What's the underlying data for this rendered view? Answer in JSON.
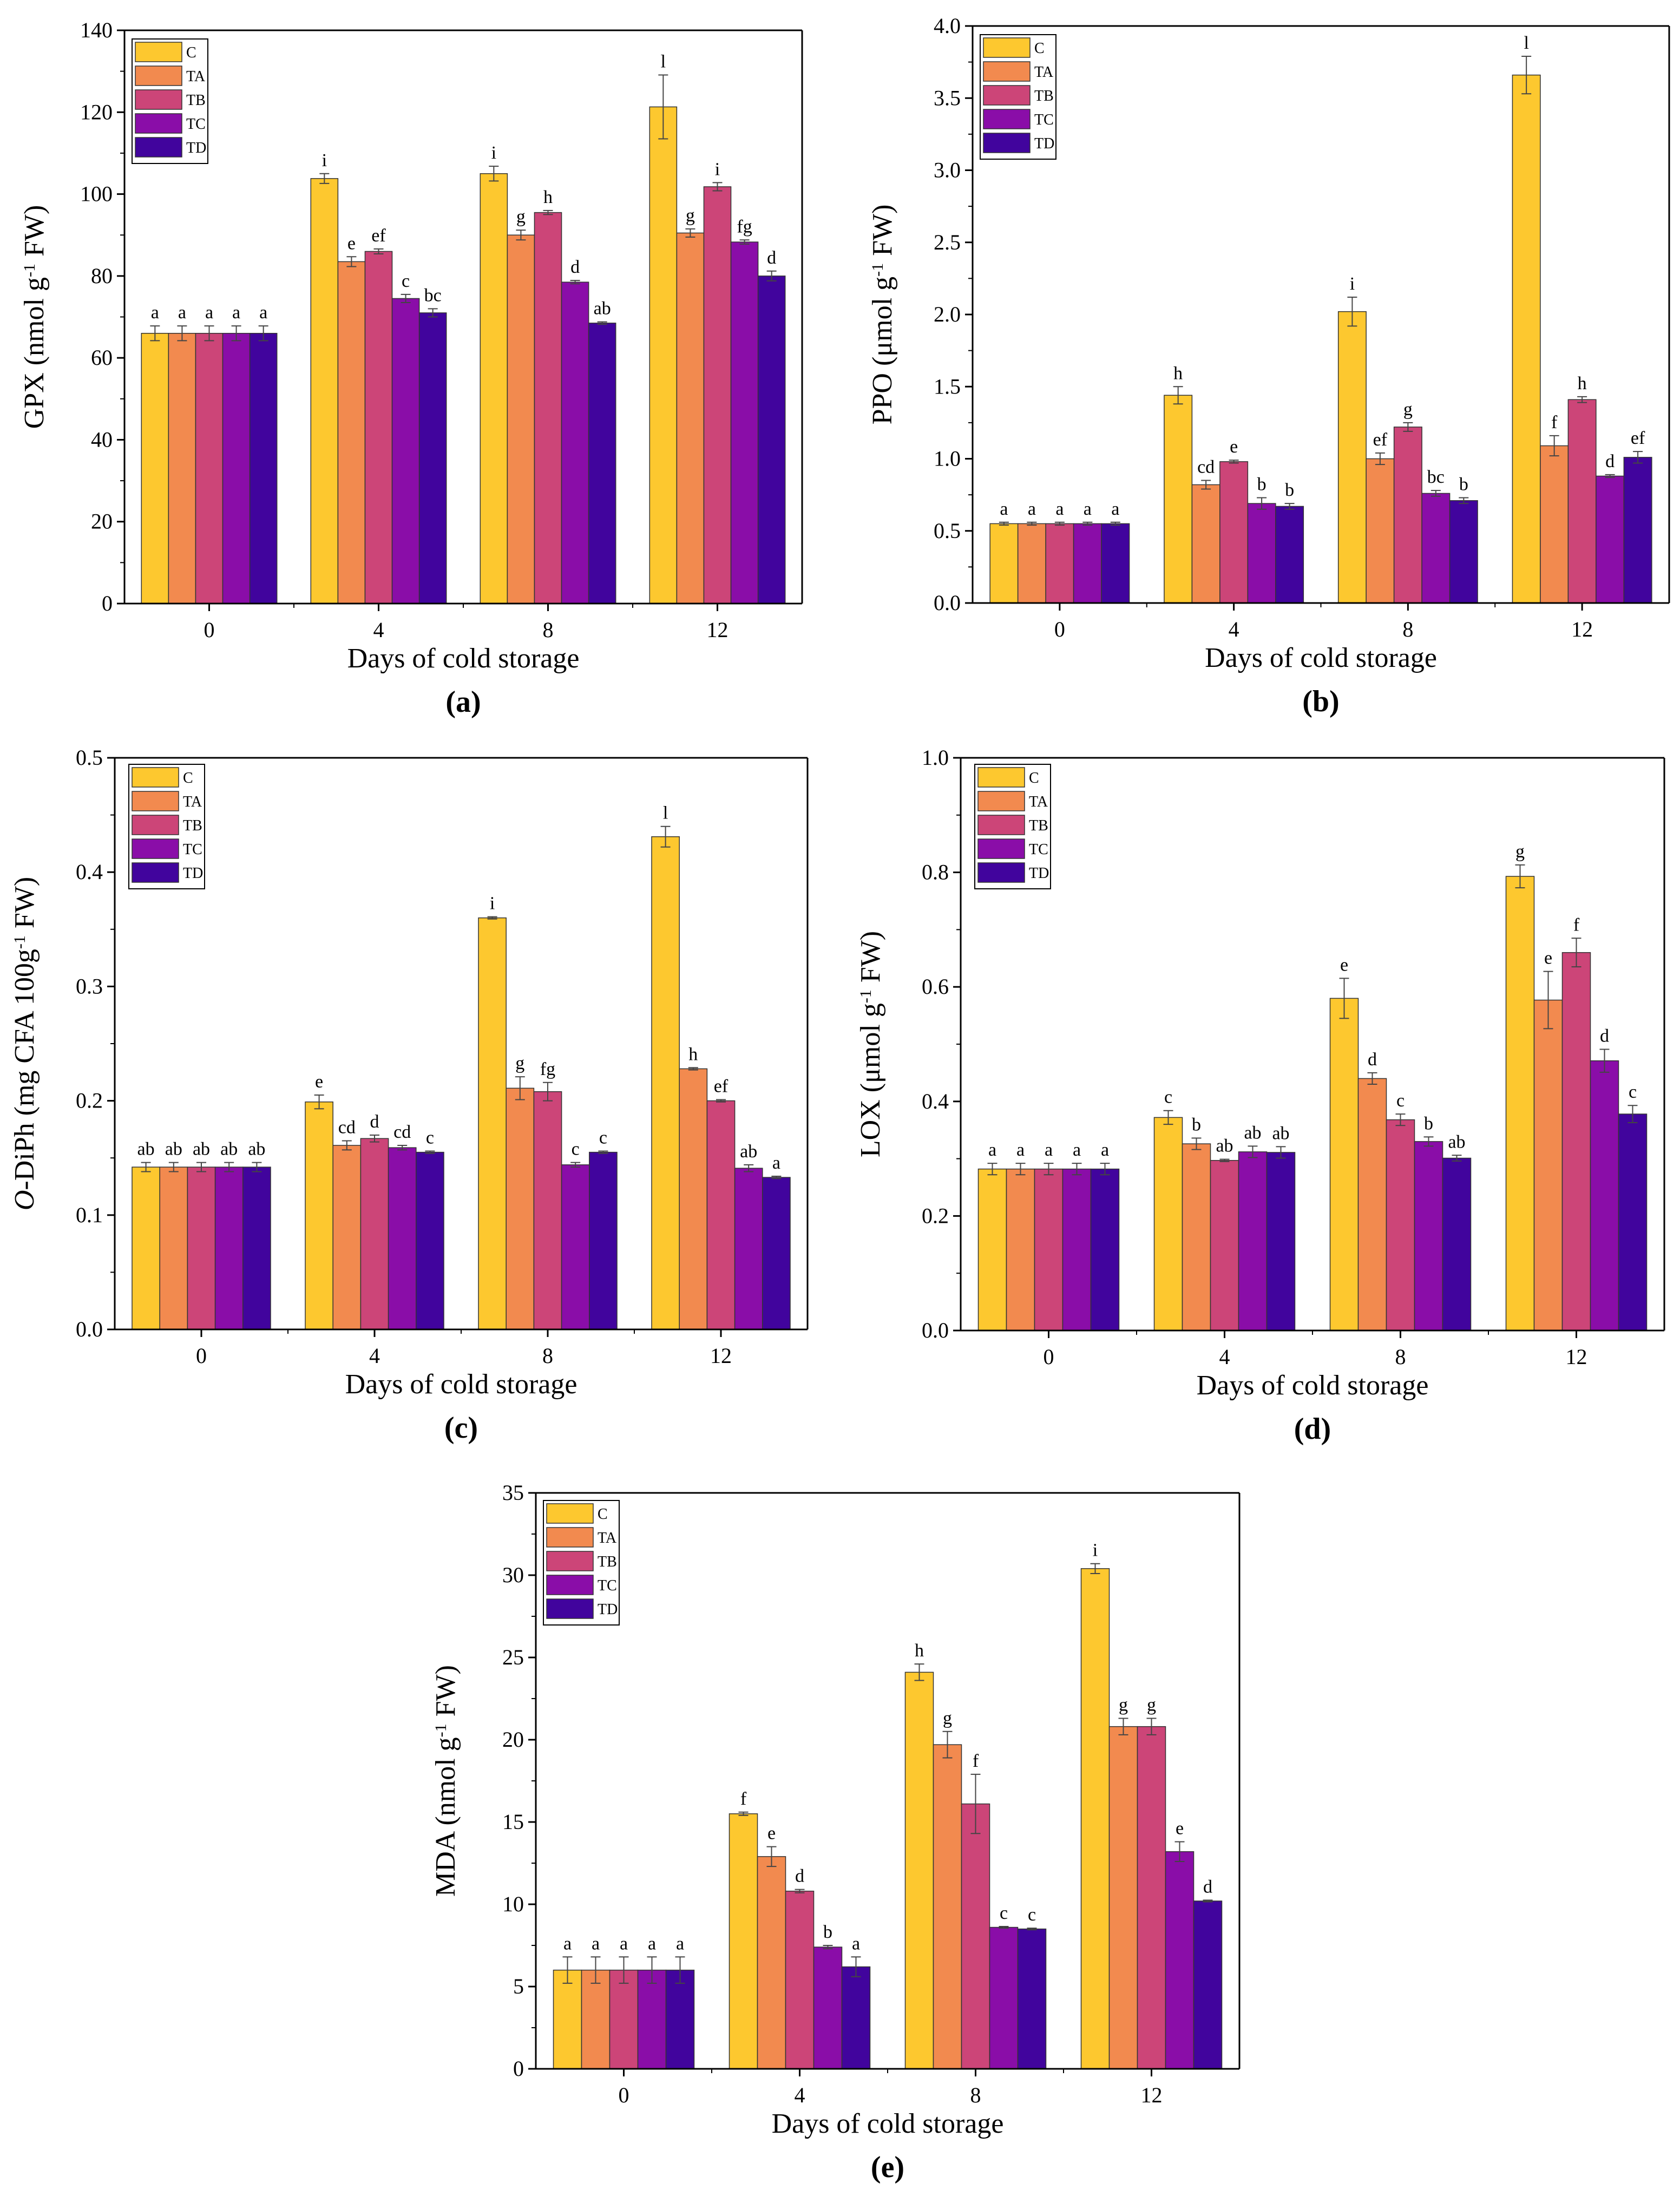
{
  "figure": {
    "series_colors": [
      "#FDC82F",
      "#F28A4F",
      "#CC4578",
      "#8A0DA8",
      "#41049D"
    ],
    "bar_edge_color": "#333333"
  },
  "chart_data": [
    {
      "id": "a",
      "panel_label": "(a)",
      "type": "bar",
      "title": "",
      "xlabel": "Days of cold storage",
      "ylabel_html": "GPX (nmol g<tspan baseline-shift=\"super\" font-size=\"30\">-1</tspan> FW)",
      "ylabel": "GPX (nmol g-1 FW)",
      "categories": [
        "0",
        "4",
        "8",
        "12"
      ],
      "ylim": [
        0,
        140
      ],
      "yticks": [
        0,
        20,
        40,
        60,
        80,
        100,
        120,
        140
      ],
      "ytick_labels": [
        "0",
        "20",
        "40",
        "60",
        "80",
        "100",
        "120",
        "140"
      ],
      "legend": [
        "C",
        "TA",
        "TB",
        "TC",
        "TD"
      ],
      "series": [
        {
          "name": "C",
          "values": [
            66,
            103.8,
            105,
            121.3
          ],
          "errors": [
            1.8,
            1.2,
            1.8,
            7.8
          ],
          "letters": [
            "a",
            "i",
            "i",
            "l"
          ]
        },
        {
          "name": "TA",
          "values": [
            66,
            83.5,
            90,
            90.5
          ],
          "errors": [
            1.8,
            1.2,
            1.2,
            1.0
          ],
          "letters": [
            "a",
            "e",
            "g",
            "g"
          ]
        },
        {
          "name": "TB",
          "values": [
            66,
            86,
            95.5,
            101.8
          ],
          "errors": [
            1.8,
            0.6,
            0.5,
            1.0
          ],
          "letters": [
            "a",
            "ef",
            "h",
            "i"
          ]
        },
        {
          "name": "TC",
          "values": [
            66,
            74.5,
            78.5,
            88.3
          ],
          "errors": [
            1.8,
            1.0,
            0.4,
            0.5
          ],
          "letters": [
            "a",
            "c",
            "d",
            "fg"
          ]
        },
        {
          "name": "TD",
          "values": [
            66,
            71,
            68.5,
            80
          ],
          "errors": [
            1.8,
            1.0,
            0.3,
            1.2
          ],
          "letters": [
            "a",
            "bc",
            "ab",
            "d"
          ]
        }
      ]
    },
    {
      "id": "b",
      "panel_label": "(b)",
      "type": "bar",
      "title": "",
      "xlabel": "Days of cold storage",
      "ylabel_html": "PPO (μmol g<tspan baseline-shift=\"super\" font-size=\"30\">-1</tspan> FW)",
      "ylabel": "PPO (μmol g-1 FW)",
      "categories": [
        "0",
        "4",
        "8",
        "12"
      ],
      "ylim": [
        0,
        4.0
      ],
      "yticks": [
        0,
        0.5,
        1.0,
        1.5,
        2.0,
        2.5,
        3.0,
        3.5,
        4.0
      ],
      "ytick_labels": [
        "0.0",
        "0.5",
        "1.0",
        "1.5",
        "2.0",
        "2.5",
        "3.0",
        "3.5",
        "4.0"
      ],
      "legend": [
        "C",
        "TA",
        "TB",
        "TC",
        "TD"
      ],
      "series": [
        {
          "name": "C",
          "values": [
            0.55,
            1.44,
            2.02,
            3.66
          ],
          "errors": [
            0.01,
            0.06,
            0.1,
            0.13
          ],
          "letters": [
            "a",
            "h",
            "i",
            "l"
          ]
        },
        {
          "name": "TA",
          "values": [
            0.55,
            0.82,
            1.0,
            1.09
          ],
          "errors": [
            0.01,
            0.03,
            0.04,
            0.07
          ],
          "letters": [
            "a",
            "cd",
            "ef",
            "f"
          ]
        },
        {
          "name": "TB",
          "values": [
            0.55,
            0.98,
            1.22,
            1.41
          ],
          "errors": [
            0.01,
            0.01,
            0.03,
            0.02
          ],
          "letters": [
            "a",
            "e",
            "g",
            "h"
          ]
        },
        {
          "name": "TC",
          "values": [
            0.55,
            0.69,
            0.76,
            0.88
          ],
          "errors": [
            0.01,
            0.04,
            0.02,
            0.01
          ],
          "letters": [
            "a",
            "b",
            "bc",
            "d"
          ]
        },
        {
          "name": "TD",
          "values": [
            0.55,
            0.67,
            0.71,
            1.01
          ],
          "errors": [
            0.01,
            0.02,
            0.02,
            0.04
          ],
          "letters": [
            "a",
            "b",
            "b",
            "ef"
          ]
        }
      ]
    },
    {
      "id": "c",
      "panel_label": "(c)",
      "type": "bar",
      "title": "",
      "xlabel": "Days of cold storage",
      "ylabel_html": "<tspan font-style=\"italic\">O</tspan>-DiPh (mg CFA 100g<tspan baseline-shift=\"super\" font-size=\"30\">-1</tspan> FW)",
      "ylabel": "O-DiPh (mg CFA 100g-1 FW)",
      "categories": [
        "0",
        "4",
        "8",
        "12"
      ],
      "ylim": [
        0,
        0.5
      ],
      "yticks": [
        0,
        0.1,
        0.2,
        0.3,
        0.4,
        0.5
      ],
      "ytick_labels": [
        "0.0",
        "0.1",
        "0.2",
        "0.3",
        "0.4",
        "0.5"
      ],
      "legend": [
        "C",
        "TA",
        "TB",
        "TC",
        "TD"
      ],
      "series": [
        {
          "name": "C",
          "values": [
            0.142,
            0.199,
            0.36,
            0.431
          ],
          "errors": [
            0.004,
            0.006,
            0.001,
            0.009
          ],
          "letters": [
            "ab",
            "e",
            "i",
            "l"
          ]
        },
        {
          "name": "TA",
          "values": [
            0.142,
            0.161,
            0.211,
            0.228
          ],
          "errors": [
            0.004,
            0.004,
            0.01,
            0.001
          ],
          "letters": [
            "ab",
            "cd",
            "g",
            "h"
          ]
        },
        {
          "name": "TB",
          "values": [
            0.142,
            0.167,
            0.208,
            0.2
          ],
          "errors": [
            0.004,
            0.003,
            0.008,
            0.001
          ],
          "letters": [
            "ab",
            "d",
            "fg",
            "ef"
          ]
        },
        {
          "name": "TC",
          "values": [
            0.142,
            0.159,
            0.144,
            0.141
          ],
          "errors": [
            0.004,
            0.002,
            0.002,
            0.003
          ],
          "letters": [
            "ab",
            "cd",
            "c",
            "ab"
          ]
        },
        {
          "name": "TD",
          "values": [
            0.142,
            0.155,
            0.155,
            0.133
          ],
          "errors": [
            0.004,
            0.001,
            0.001,
            0.001
          ],
          "letters": [
            "ab",
            "c",
            "c",
            "a"
          ]
        }
      ]
    },
    {
      "id": "d",
      "panel_label": "(d)",
      "type": "bar",
      "title": "",
      "xlabel": "Days of cold storage",
      "ylabel_html": "LOX (μmol g<tspan baseline-shift=\"super\" font-size=\"30\">-1</tspan> FW)",
      "ylabel": "LOX (μmol g-1 FW)",
      "categories": [
        "0",
        "4",
        "8",
        "12"
      ],
      "ylim": [
        0,
        1.0
      ],
      "yticks": [
        0,
        0.2,
        0.4,
        0.6,
        0.8,
        1.0
      ],
      "ytick_labels": [
        "0.0",
        "0.2",
        "0.4",
        "0.6",
        "0.8",
        "1.0"
      ],
      "legend": [
        "C",
        "TA",
        "TB",
        "TC",
        "TD"
      ],
      "series": [
        {
          "name": "C",
          "values": [
            0.282,
            0.372,
            0.58,
            0.793
          ],
          "errors": [
            0.01,
            0.012,
            0.035,
            0.02
          ],
          "letters": [
            "a",
            "c",
            "e",
            "g"
          ]
        },
        {
          "name": "TA",
          "values": [
            0.282,
            0.326,
            0.44,
            0.577
          ],
          "errors": [
            0.01,
            0.01,
            0.01,
            0.05
          ],
          "letters": [
            "a",
            "b",
            "d",
            "e"
          ]
        },
        {
          "name": "TB",
          "values": [
            0.282,
            0.297,
            0.368,
            0.66
          ],
          "errors": [
            0.01,
            0.002,
            0.01,
            0.025
          ],
          "letters": [
            "a",
            "ab",
            "c",
            "f"
          ]
        },
        {
          "name": "TC",
          "values": [
            0.282,
            0.312,
            0.33,
            0.471
          ],
          "errors": [
            0.01,
            0.01,
            0.008,
            0.02
          ],
          "letters": [
            "a",
            "ab",
            "b",
            "d"
          ]
        },
        {
          "name": "TD",
          "values": [
            0.282,
            0.311,
            0.301,
            0.378
          ],
          "errors": [
            0.01,
            0.01,
            0.005,
            0.015
          ],
          "letters": [
            "a",
            "ab",
            "ab",
            "c"
          ]
        }
      ]
    },
    {
      "id": "e",
      "panel_label": "(e)",
      "type": "bar",
      "title": "",
      "xlabel": "Days of cold storage",
      "ylabel_html": "MDA (nmol g<tspan baseline-shift=\"super\" font-size=\"30\">-1</tspan> FW)",
      "ylabel": "MDA (nmol g-1 FW)",
      "categories": [
        "0",
        "4",
        "8",
        "12"
      ],
      "ylim": [
        0,
        35
      ],
      "yticks": [
        0,
        5,
        10,
        15,
        20,
        25,
        30,
        35
      ],
      "ytick_labels": [
        "0",
        "5",
        "10",
        "15",
        "20",
        "25",
        "30",
        "35"
      ],
      "legend": [
        "C",
        "TA",
        "TB",
        "TC",
        "TD"
      ],
      "series": [
        {
          "name": "C",
          "values": [
            6,
            15.5,
            24.1,
            30.4
          ],
          "errors": [
            0.8,
            0.1,
            0.5,
            0.3
          ],
          "letters": [
            "a",
            "f",
            "h",
            "i"
          ]
        },
        {
          "name": "TA",
          "values": [
            6,
            12.9,
            19.7,
            20.8
          ],
          "errors": [
            0.8,
            0.6,
            0.8,
            0.5
          ],
          "letters": [
            "a",
            "e",
            "g",
            "g"
          ]
        },
        {
          "name": "TB",
          "values": [
            6,
            10.8,
            16.1,
            20.8
          ],
          "errors": [
            0.8,
            0.1,
            1.8,
            0.5
          ],
          "letters": [
            "a",
            "d",
            "f",
            "g"
          ]
        },
        {
          "name": "TC",
          "values": [
            6,
            7.4,
            8.6,
            13.2
          ],
          "errors": [
            0.8,
            0.1,
            0.05,
            0.6
          ],
          "letters": [
            "a",
            "b",
            "c",
            "e"
          ]
        },
        {
          "name": "TD",
          "values": [
            6,
            6.2,
            8.5,
            10.2
          ],
          "errors": [
            0.8,
            0.6,
            0.05,
            0.05
          ],
          "letters": [
            "a",
            "a",
            "c",
            "d"
          ]
        }
      ]
    }
  ]
}
